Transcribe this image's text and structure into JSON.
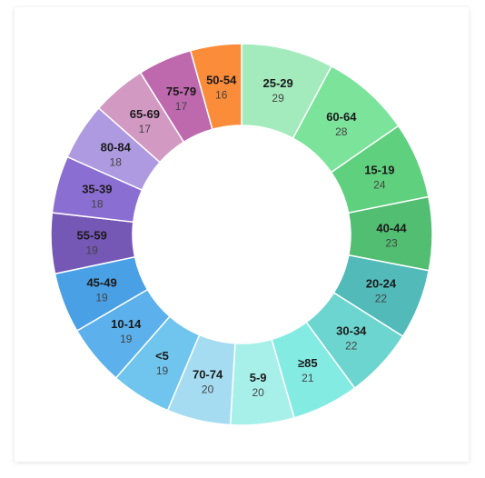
{
  "chart_data": {
    "type": "pie",
    "variant": "donut",
    "title": "",
    "categories": [
      "25-29",
      "60-64",
      "15-19",
      "40-44",
      "20-24",
      "30-34",
      "≥85",
      "5-9",
      "70-74",
      "<5",
      "10-14",
      "45-49",
      "55-59",
      "35-39",
      "80-84",
      "65-69",
      "75-79",
      "50-54"
    ],
    "values": [
      29,
      28,
      24,
      23,
      22,
      22,
      21,
      20,
      20,
      19,
      19,
      19,
      19,
      18,
      18,
      17,
      17,
      16
    ],
    "colors": [
      "#a3ebbd",
      "#7ce39b",
      "#5fd07e",
      "#52be71",
      "#52bbb9",
      "#6dd5cf",
      "#84ebe3",
      "#a7f0ea",
      "#a5dcf2",
      "#6fc5ee",
      "#5cb0eb",
      "#4aa0e5",
      "#7557b5",
      "#8b6ed1",
      "#ad9ae0",
      "#d299c3",
      "#be68ad",
      "#fb8c3a"
    ],
    "legend": "none",
    "labels": "inside-slices"
  }
}
